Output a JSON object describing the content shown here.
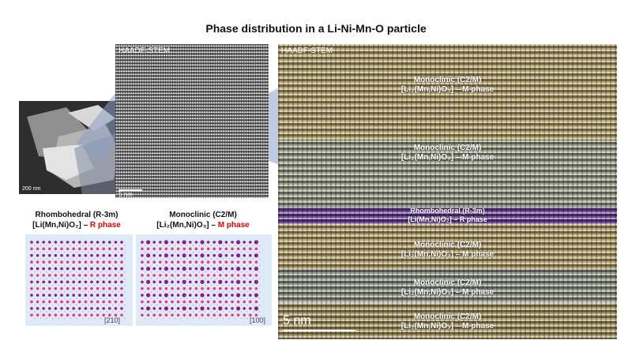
{
  "figure": {
    "title": "Phase distribution in a Li-Ni-Mn-O particle",
    "overview": {
      "scale_label": "200 nm"
    },
    "middle_panel": {
      "technique": "HAADF-STEM",
      "scale_label": "5 nm"
    },
    "right_panel": {
      "technique": "HAADF-STEM",
      "scale_label": "5 nm",
      "layers": [
        {
          "phase": "Monoclinic (C2/M)",
          "formula": "[Li₂(Mn,Ni)O₃] – M phase",
          "color": "#b39f66"
        },
        {
          "phase": "Monoclinic (C2/M)",
          "formula": "[Li₂(Mn,Ni)O₃] – M phase",
          "color": "#9c9f86"
        },
        {
          "phase": "Rhombohedral (R-3m)",
          "formula": "[Li(Mn,Ni)O₂] – R phase",
          "color": "#6a3f98"
        },
        {
          "phase": "Monoclinic (C2/M)",
          "formula": "[Li₂(Mn,Ni)O₃] – M phase",
          "color": "#b39f66"
        },
        {
          "phase": "Monoclinic (C2/M)",
          "formula": "[Li₂(Mn,Ni)O₃] – M phase",
          "color": "#8e9486"
        },
        {
          "phase": "Monoclinic (C2/M)",
          "formula": "[Li₂(Mn,Ni)O₃] – M phase",
          "color": "#a8975f"
        }
      ]
    },
    "models": [
      {
        "title": "Rhombohedral (R-3m)",
        "formula": "[Li(Mn,Ni)O₂] – ",
        "phase_tag": "R phase",
        "zone_axis": "[210]"
      },
      {
        "title": "Monoclinic (C2/M)",
        "formula": "[Li₂(Mn,Ni)O₃] – ",
        "phase_tag": "M phase",
        "zone_axis": "[100]"
      }
    ],
    "atom_colors": {
      "transition_metal": "#8a1c8e",
      "lithium": "#e8387e",
      "oxygen": "#f2a8c8"
    },
    "accent_red": "#e60000"
  }
}
